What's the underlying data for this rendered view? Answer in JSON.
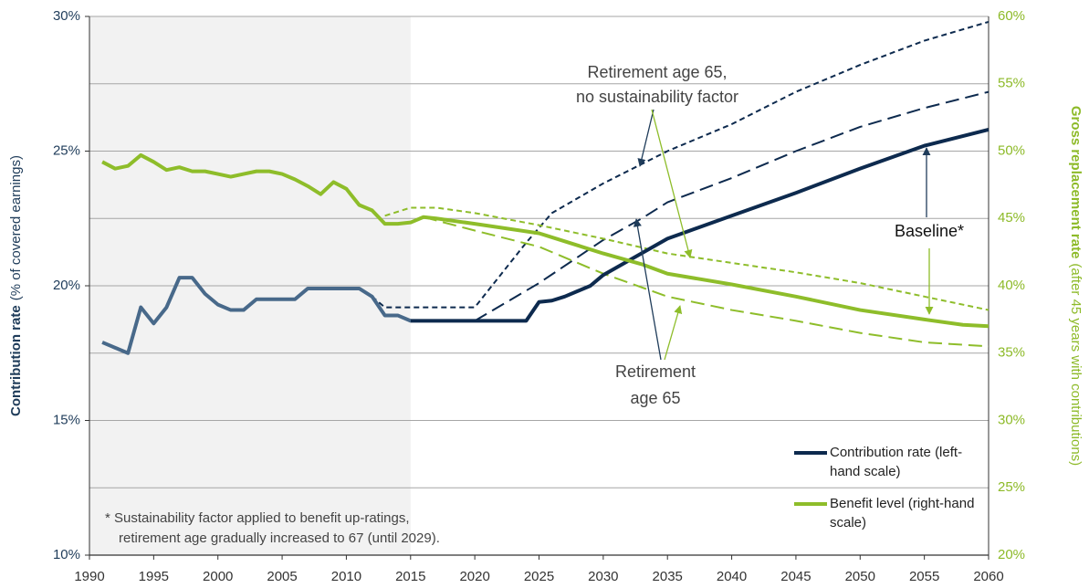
{
  "chart_data": {
    "type": "line",
    "xlim": [
      1990,
      2060
    ],
    "xticks": [
      1990,
      1995,
      2000,
      2005,
      2010,
      2015,
      2020,
      2025,
      2030,
      2035,
      2040,
      2045,
      2050,
      2055,
      2060
    ],
    "ylim": [
      10,
      30
    ],
    "yticks": [
      {
        "value": 10,
        "label": "10%"
      },
      {
        "value": 15,
        "label": "15%"
      },
      {
        "value": 20,
        "label": "20%"
      },
      {
        "value": 25,
        "label": "25%"
      },
      {
        "value": 30,
        "label": "30%"
      }
    ],
    "y2lim": [
      20,
      60
    ],
    "y2ticks": [
      {
        "value": 20,
        "label": "20%"
      },
      {
        "value": 25,
        "label": "25%"
      },
      {
        "value": 30,
        "label": "30%"
      },
      {
        "value": 35,
        "label": "35%"
      },
      {
        "value": 40,
        "label": "40%"
      },
      {
        "value": 45,
        "label": "45%"
      },
      {
        "value": 50,
        "label": "50%"
      },
      {
        "value": 55,
        "label": "55%"
      },
      {
        "value": 60,
        "label": "60%"
      }
    ],
    "grid": true,
    "shaded_xrange": [
      1990,
      2015
    ],
    "ylabel": [
      "Contribution rate",
      "(% of covered earnings)"
    ],
    "y2label": [
      "Gross replacement rate",
      "(after 45 years with contributions)"
    ],
    "ylabel_color": "#1f3c5a",
    "y2label_color": "#8dba28",
    "series": [
      {
        "name": "Contribution rate (left-hand scale)",
        "color": "#0d2a4e",
        "history_color": "#48698a",
        "axis": "y",
        "dash": "solid",
        "x": [
          1991,
          1992,
          1993,
          1994,
          1995,
          1996,
          1997,
          1998,
          1999,
          2000,
          2001,
          2002,
          2003,
          2004,
          2005,
          2006,
          2007,
          2008,
          2009,
          2010,
          2011,
          2012,
          2013,
          2014,
          2015,
          2016,
          2017,
          2018,
          2019,
          2020,
          2021,
          2022,
          2023,
          2024,
          2025,
          2026,
          2027,
          2028,
          2029,
          2030,
          2035,
          2040,
          2045,
          2050,
          2055,
          2060
        ],
        "values": [
          17.9,
          17.7,
          17.5,
          19.2,
          18.6,
          19.2,
          20.3,
          20.3,
          19.7,
          19.3,
          19.1,
          19.1,
          19.5,
          19.5,
          19.5,
          19.5,
          19.9,
          19.9,
          19.9,
          19.9,
          19.9,
          19.6,
          18.9,
          18.9,
          18.7,
          18.7,
          18.7,
          18.7,
          18.7,
          18.7,
          18.7,
          18.7,
          18.7,
          18.7,
          19.4,
          19.45,
          19.6,
          19.8,
          20.0,
          20.4,
          21.75,
          22.6,
          23.45,
          24.35,
          25.2,
          25.8
        ]
      },
      {
        "name": "Benefit level (right-hand scale)",
        "color": "#8ebd2a",
        "axis": "y2",
        "dash": "solid",
        "x": [
          1991,
          1992,
          1993,
          1994,
          1995,
          1996,
          1997,
          1998,
          1999,
          2000,
          2001,
          2002,
          2003,
          2004,
          2005,
          2006,
          2007,
          2008,
          2009,
          2010,
          2011,
          2012,
          2013,
          2014,
          2015,
          2016,
          2017,
          2020,
          2025,
          2027,
          2030,
          2033,
          2035,
          2040,
          2045,
          2050,
          2055,
          2058,
          2060
        ],
        "values": [
          49.2,
          48.7,
          48.9,
          49.7,
          49.2,
          48.6,
          48.8,
          48.5,
          48.5,
          48.3,
          48.1,
          48.3,
          48.5,
          48.5,
          48.3,
          47.9,
          47.4,
          46.8,
          47.7,
          47.2,
          46.0,
          45.6,
          44.6,
          44.6,
          44.7,
          45.1,
          45.0,
          44.6,
          43.9,
          43.3,
          42.4,
          41.6,
          40.9,
          40.1,
          39.2,
          38.2,
          37.5,
          37.1,
          37.0
        ]
      },
      {
        "color": "#0d2a4e",
        "axis": "y",
        "dash": "short",
        "x": [
          2012,
          2013,
          2020,
          2022,
          2024,
          2026,
          2030,
          2035,
          2040,
          2045,
          2050,
          2055,
          2060
        ],
        "values": [
          19.6,
          19.2,
          19.2,
          20.4,
          21.6,
          22.7,
          23.8,
          25.0,
          26.0,
          27.2,
          28.2,
          29.1,
          29.8
        ]
      },
      {
        "color": "#0d2a4e",
        "axis": "y",
        "dash": "long",
        "x": [
          2020,
          2025,
          2030,
          2033,
          2035,
          2040,
          2045,
          2050,
          2055,
          2060
        ],
        "values": [
          18.7,
          20.1,
          21.7,
          22.5,
          23.1,
          24.0,
          25.0,
          25.9,
          26.6,
          27.2
        ]
      },
      {
        "color": "#8ebd2a",
        "axis": "y2",
        "dash": "short",
        "x": [
          2013,
          2015,
          2017,
          2020,
          2025,
          2030,
          2035,
          2040,
          2045,
          2050,
          2055,
          2060
        ],
        "values": [
          45.2,
          45.8,
          45.8,
          45.4,
          44.5,
          43.5,
          42.4,
          41.7,
          41.0,
          40.2,
          39.2,
          38.2
        ]
      },
      {
        "color": "#8ebd2a",
        "axis": "y2",
        "dash": "long",
        "x": [
          2016,
          2020,
          2025,
          2030,
          2035,
          2040,
          2045,
          2050,
          2055,
          2060
        ],
        "values": [
          45.1,
          44.1,
          42.9,
          40.9,
          39.2,
          38.2,
          37.4,
          36.5,
          35.8,
          35.5
        ]
      }
    ],
    "annotations": [
      {
        "lines": [
          "Retirement age 65,",
          "no sustainability factor"
        ]
      },
      {
        "lines": [
          "Retirement",
          "age 65"
        ]
      },
      {
        "lines": [
          "Baseline*"
        ]
      },
      {
        "lines": [
          "* Sustainability factor applied to benefit up-ratings,",
          "retirement age gradually increased to 67 (until 2029)."
        ]
      }
    ]
  }
}
